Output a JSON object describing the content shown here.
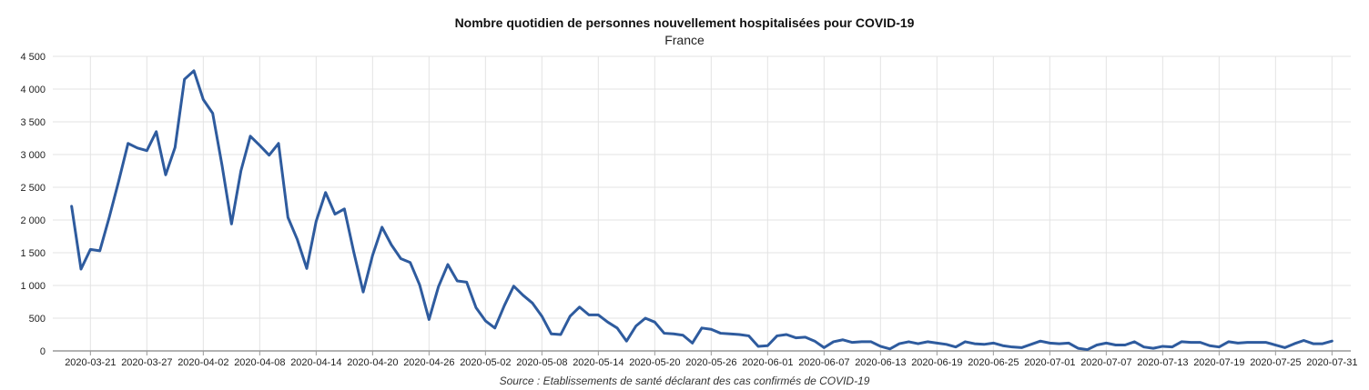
{
  "chart_data": {
    "type": "line",
    "title": "Nombre quotidien de personnes nouvellement hospitalisées pour COVID-19",
    "subtitle": "France",
    "source": "Source : Etablissements de santé déclarant des cas confirmés de COVID-19",
    "xlabel": "",
    "ylabel": "",
    "x_start": "2020-03-19",
    "x_end": "2020-07-31",
    "xlim": [
      "2020-03-17",
      "2020-08-02"
    ],
    "x_ticks": [
      "2020-03-21",
      "2020-03-27",
      "2020-04-02",
      "2020-04-08",
      "2020-04-14",
      "2020-04-20",
      "2020-04-26",
      "2020-05-02",
      "2020-05-08",
      "2020-05-14",
      "2020-05-20",
      "2020-05-26",
      "2020-06-01",
      "2020-06-07",
      "2020-06-13",
      "2020-06-19",
      "2020-06-25",
      "2020-07-01",
      "2020-07-07",
      "2020-07-13",
      "2020-07-19",
      "2020-07-25",
      "2020-07-31"
    ],
    "y_ticks": [
      0,
      500,
      1000,
      1500,
      2000,
      2500,
      3000,
      3500,
      4000,
      4500
    ],
    "y_tick_labels": [
      "0",
      "500",
      "1 000",
      "1 500",
      "2 000",
      "2 500",
      "3 000",
      "3 500",
      "4 000",
      "4 500"
    ],
    "ylim": [
      0,
      4500
    ],
    "grid": true,
    "series": [
      {
        "color": "#2e5b9e",
        "values": [
          2210,
          1250,
          1550,
          1530,
          2040,
          2590,
          3170,
          3100,
          3060,
          3350,
          2690,
          3110,
          4150,
          4280,
          3840,
          3630,
          2830,
          1940,
          2750,
          3280,
          3140,
          2990,
          3170,
          2040,
          1700,
          1260,
          1980,
          2420,
          2090,
          2170,
          1510,
          900,
          1460,
          1890,
          1620,
          1410,
          1350,
          1010,
          480,
          980,
          1320,
          1070,
          1050,
          660,
          460,
          350,
          690,
          990,
          850,
          730,
          530,
          260,
          250,
          530,
          670,
          550,
          550,
          440,
          350,
          150,
          380,
          500,
          440,
          270,
          260,
          240,
          120,
          350,
          330,
          270,
          260,
          250,
          230,
          70,
          80,
          230,
          250,
          200,
          210,
          150,
          50,
          140,
          170,
          130,
          140,
          140,
          70,
          30,
          110,
          140,
          110,
          140,
          120,
          100,
          60,
          140,
          110,
          100,
          120,
          80,
          60,
          50,
          100,
          150,
          120,
          110,
          120,
          40,
          20,
          90,
          120,
          90,
          90,
          140,
          60,
          40,
          70,
          60,
          140,
          130,
          130,
          80,
          60,
          140,
          120,
          130,
          130,
          130,
          90,
          50,
          110,
          160,
          110,
          110,
          150
        ]
      }
    ]
  }
}
